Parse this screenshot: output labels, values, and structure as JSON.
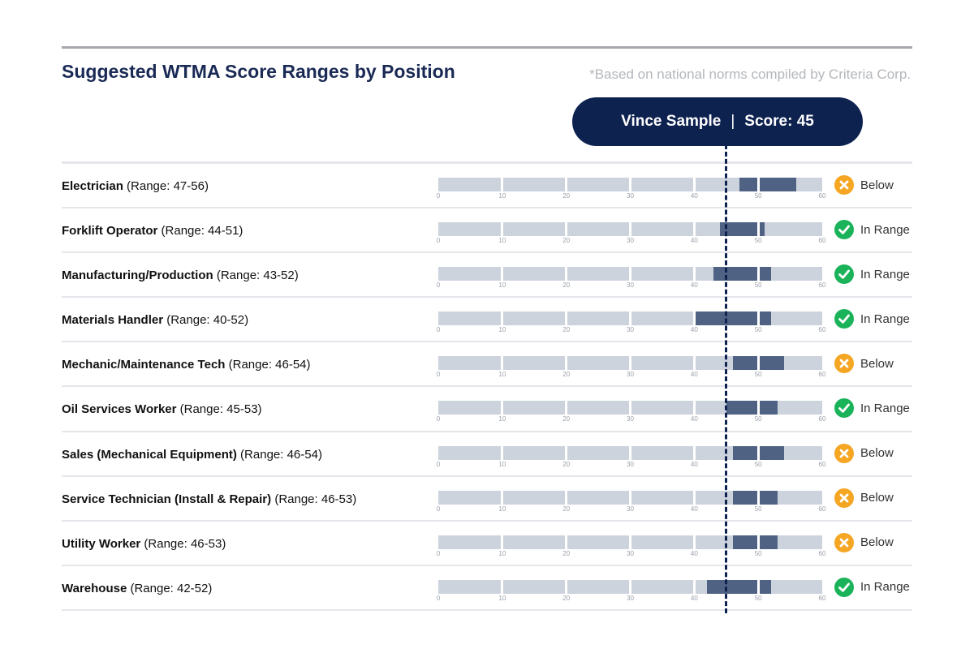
{
  "title": "Suggested WTMA Score Ranges by Position",
  "note": "*Based on national norms compiled by Criteria Corp.",
  "candidate": {
    "name": "Vince Sample",
    "separator": "|",
    "score_label": "Score: 45",
    "score": 45
  },
  "colors": {
    "navy": "#0e2250",
    "track": "#cdd3dd",
    "range": "#4f6284",
    "in_range": "#1bb35a",
    "below": "#f5a623"
  },
  "chart_data": {
    "type": "bar",
    "title": "Suggested WTMA Score Ranges by Position",
    "axis": {
      "min": 0,
      "max": 60,
      "ticks": [
        "0",
        "10",
        "20",
        "30",
        "40",
        "50",
        "60"
      ]
    },
    "candidate_score": 45,
    "rows": [
      {
        "name": "Electrician",
        "range_text": "(Range: 47-56)",
        "low": 47,
        "high": 56,
        "status": "Below",
        "status_icon": "x-icon"
      },
      {
        "name": "Forklift Operator",
        "range_text": "(Range: 44-51)",
        "low": 44,
        "high": 51,
        "status": "In Range",
        "status_icon": "check-icon"
      },
      {
        "name": "Manufacturing/Production",
        "range_text": "(Range: 43-52)",
        "low": 43,
        "high": 52,
        "status": "In Range",
        "status_icon": "check-icon"
      },
      {
        "name": "Materials Handler",
        "range_text": "(Range: 40-52)",
        "low": 40,
        "high": 52,
        "status": "In Range",
        "status_icon": "check-icon"
      },
      {
        "name": "Mechanic/Maintenance Tech",
        "range_text": "(Range: 46-54)",
        "low": 46,
        "high": 54,
        "status": "Below",
        "status_icon": "x-icon"
      },
      {
        "name": "Oil Services Worker",
        "range_text": "(Range: 45-53)",
        "low": 45,
        "high": 53,
        "status": "In Range",
        "status_icon": "check-icon"
      },
      {
        "name": "Sales (Mechanical Equipment)",
        "range_text": "(Range: 46-54)",
        "low": 46,
        "high": 54,
        "status": "Below",
        "status_icon": "x-icon"
      },
      {
        "name": "Service Technician (Install & Repair)",
        "range_text": "(Range: 46-53)",
        "low": 46,
        "high": 53,
        "status": "Below",
        "status_icon": "x-icon"
      },
      {
        "name": "Utility Worker",
        "range_text": "(Range: 46-53)",
        "low": 46,
        "high": 53,
        "status": "Below",
        "status_icon": "x-icon"
      },
      {
        "name": "Warehouse",
        "range_text": "(Range: 42-52)",
        "low": 42,
        "high": 52,
        "status": "In Range",
        "status_icon": "check-icon"
      }
    ]
  }
}
